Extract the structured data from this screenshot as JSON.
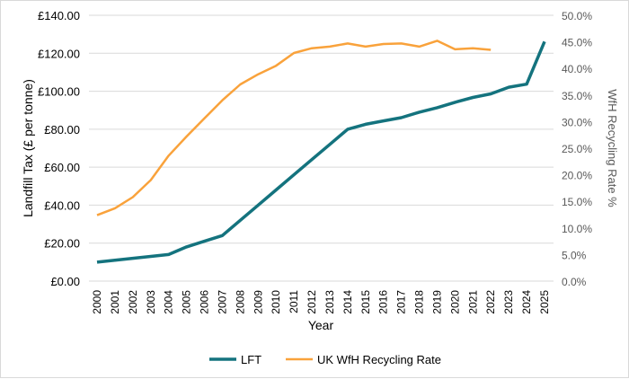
{
  "chart_data": {
    "type": "line",
    "title": "",
    "xlabel": "Year",
    "ylabel": "Landfill Tax (£ per tonne)",
    "y2label": "WfH Recycling Rate %",
    "ylim": [
      0,
      140
    ],
    "y2lim": [
      0,
      50
    ],
    "yticks": [
      "£0.00",
      "£20.00",
      "£40.00",
      "£60.00",
      "£80.00",
      "£100.00",
      "£120.00",
      "£140.00"
    ],
    "y2ticks": [
      "0.0%",
      "5.0%",
      "10.0%",
      "15.0%",
      "20.0%",
      "25.0%",
      "30.0%",
      "35.0%",
      "40.0%",
      "45.0%",
      "50.0%"
    ],
    "x": [
      2000,
      2001,
      2002,
      2003,
      2004,
      2005,
      2006,
      2007,
      2008,
      2009,
      2010,
      2011,
      2012,
      2013,
      2014,
      2015,
      2016,
      2017,
      2018,
      2019,
      2020,
      2021,
      2022,
      2023,
      2024,
      2025
    ],
    "grid": true,
    "legend": "bottom",
    "series": [
      {
        "name": "LFT",
        "axis": "left",
        "color": "#14737e",
        "values": [
          10,
          11,
          12,
          13,
          14,
          18,
          21,
          24,
          32,
          40,
          48,
          56,
          64,
          72,
          80,
          82.6,
          84.4,
          86.1,
          88.95,
          91.35,
          94.15,
          96.7,
          98.6,
          102.1,
          103.7,
          126.15
        ]
      },
      {
        "name": "UK WfH Recycling Rate",
        "axis": "right",
        "color": "#f9a23b",
        "values": [
          12.4,
          13.7,
          15.8,
          19.0,
          23.6,
          27.2,
          30.6,
          34.0,
          37.0,
          38.9,
          40.5,
          42.9,
          43.8,
          44.1,
          44.7,
          44.1,
          44.6,
          44.7,
          44.1,
          45.2,
          43.6,
          43.8,
          43.5,
          null,
          null,
          null
        ]
      }
    ]
  }
}
